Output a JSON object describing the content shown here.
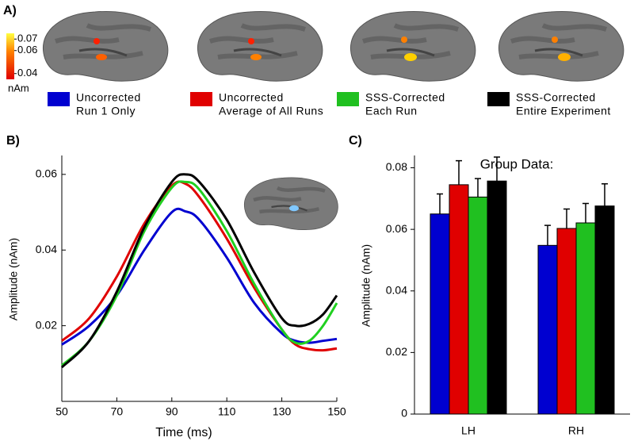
{
  "chart_data": [
    {
      "type": "brain-map",
      "panel_label": "A)",
      "colorbar": {
        "lim": [
          0.035,
          0.075
        ],
        "ticks": [
          0.07,
          0.06,
          0.04
        ],
        "unit": "nAm"
      },
      "legend": [
        {
          "label": [
            "Uncorrected",
            "Run 1 Only"
          ],
          "color": "#0000d0"
        },
        {
          "label": [
            "Uncorrected",
            "Average of All Runs"
          ],
          "color": "#e00000"
        },
        {
          "label": [
            "SSS-Corrected",
            "Each Run"
          ],
          "color": "#20c020"
        },
        {
          "label": [
            "SSS-Corrected",
            "Entire Experiment"
          ],
          "color": "#000000"
        }
      ]
    },
    {
      "type": "line",
      "panel_label": "B)",
      "xlabel": "Time (ms)",
      "ylabel": "Amplitude (nAm)",
      "x": [
        50,
        60,
        70,
        80,
        90,
        95,
        100,
        110,
        120,
        130,
        135,
        140,
        145,
        150
      ],
      "xlim": [
        50,
        150
      ],
      "xticks": [
        50,
        70,
        90,
        110,
        130,
        150
      ],
      "ylim": [
        0,
        0.065
      ],
      "yticks": [
        0.02,
        0.04,
        0.06
      ],
      "series": [
        {
          "color": "#0000d0",
          "values": [
            0.015,
            0.02,
            0.028,
            0.04,
            0.05,
            0.0502,
            0.048,
            0.038,
            0.026,
            0.018,
            0.016,
            0.0155,
            0.016,
            0.0165
          ]
        },
        {
          "color": "#e00000",
          "values": [
            0.016,
            0.022,
            0.033,
            0.047,
            0.057,
            0.0575,
            0.054,
            0.043,
            0.03,
            0.019,
            0.015,
            0.0138,
            0.0135,
            0.014
          ]
        },
        {
          "color": "#20d020",
          "values": [
            0.0095,
            0.016,
            0.028,
            0.045,
            0.0565,
            0.058,
            0.056,
            0.045,
            0.031,
            0.019,
            0.0155,
            0.016,
            0.02,
            0.026
          ]
        },
        {
          "color": "#000000",
          "values": [
            0.009,
            0.016,
            0.029,
            0.046,
            0.058,
            0.06,
            0.058,
            0.048,
            0.034,
            0.022,
            0.02,
            0.0205,
            0.023,
            0.028
          ]
        }
      ]
    },
    {
      "type": "bar",
      "panel_label": "C)",
      "title": "Group Data:",
      "ylabel": "Amplitude (nAm)",
      "categories": [
        "LH",
        "RH"
      ],
      "ylim": [
        0,
        0.084
      ],
      "yticks": [
        0,
        0.02,
        0.04,
        0.06,
        0.08
      ],
      "series": [
        {
          "color": "#0000d0",
          "values": [
            0.065,
            0.0548
          ],
          "errors": [
            0.0065,
            0.0065
          ]
        },
        {
          "color": "#e00000",
          "values": [
            0.0745,
            0.0603
          ],
          "errors": [
            0.0078,
            0.0063
          ]
        },
        {
          "color": "#20c020",
          "values": [
            0.0705,
            0.0621
          ],
          "errors": [
            0.006,
            0.0063
          ]
        },
        {
          "color": "#000000",
          "values": [
            0.0757,
            0.0676
          ],
          "errors": [
            0.0078,
            0.0072
          ]
        }
      ]
    }
  ]
}
